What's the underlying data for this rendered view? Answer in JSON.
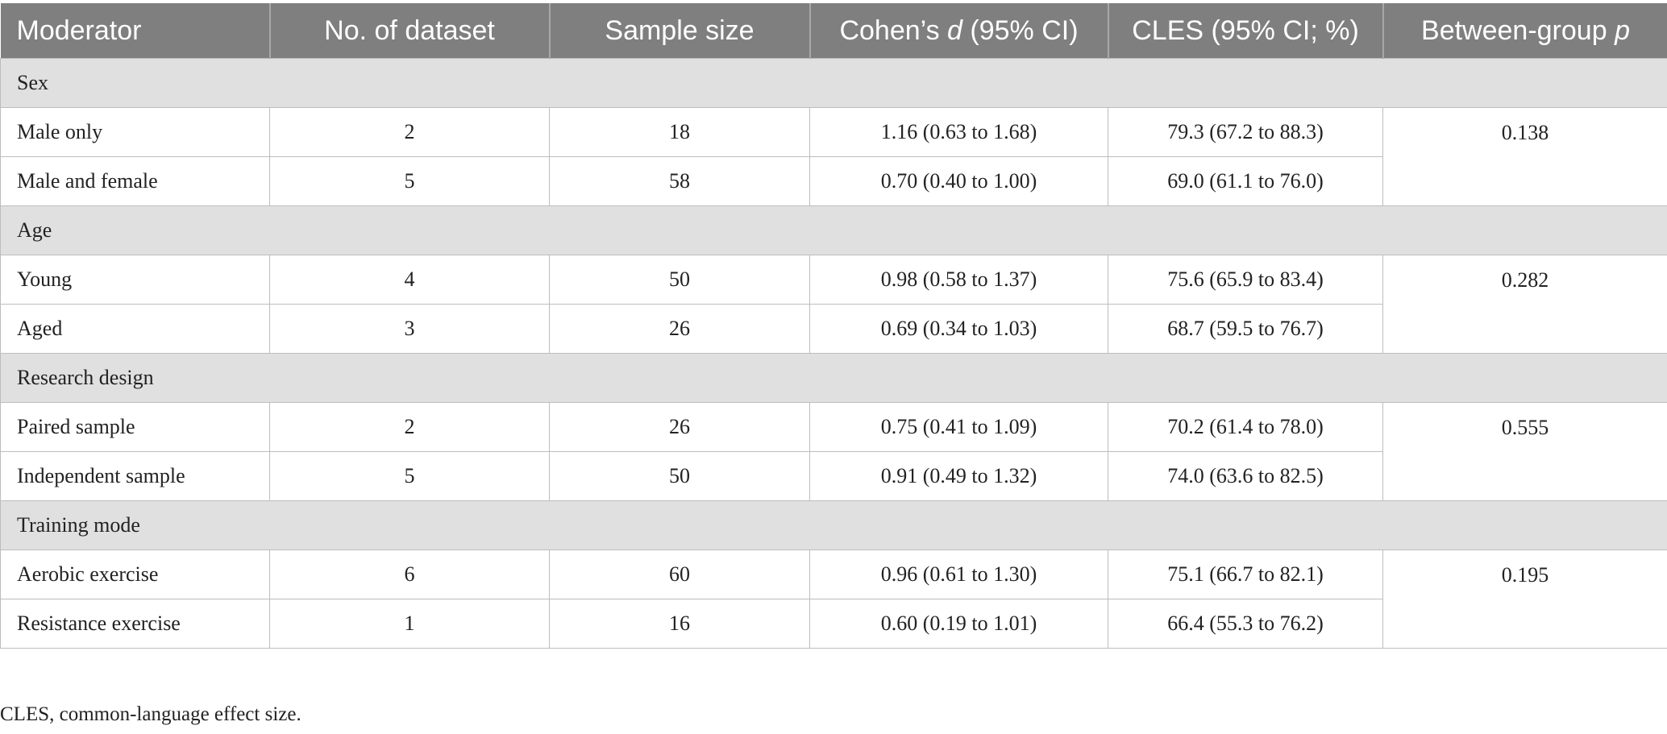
{
  "table": {
    "header": [
      [
        "Moderator"
      ],
      [
        "No. of dataset"
      ],
      [
        "Sample size"
      ],
      [
        "Cohen’s ",
        "d",
        " (95% CI)"
      ],
      [
        "CLES (95% CI; %)"
      ],
      [
        "Between-group ",
        "p"
      ]
    ],
    "groups": [
      {
        "label": "Sex",
        "p": "0.138",
        "rows": [
          [
            "Male only",
            "2",
            "18",
            "1.16 (0.63 to 1.68)",
            "79.3 (67.2 to 88.3)"
          ],
          [
            "Male and female",
            "5",
            "58",
            "0.70 (0.40 to 1.00)",
            "69.0 (61.1 to 76.0)"
          ]
        ]
      },
      {
        "label": "Age",
        "p": "0.282",
        "rows": [
          [
            "Young",
            "4",
            "50",
            "0.98 (0.58 to 1.37)",
            "75.6 (65.9 to 83.4)"
          ],
          [
            "Aged",
            "3",
            "26",
            "0.69 (0.34 to 1.03)",
            "68.7 (59.5 to 76.7)"
          ]
        ]
      },
      {
        "label": "Research design",
        "p": "0.555",
        "rows": [
          [
            "Paired sample",
            "2",
            "26",
            "0.75 (0.41 to 1.09)",
            "70.2 (61.4 to 78.0)"
          ],
          [
            "Independent sample",
            "5",
            "50",
            "0.91 (0.49 to 1.32)",
            "74.0 (63.6 to 82.5)"
          ]
        ]
      },
      {
        "label": "Training mode",
        "p": "0.195",
        "rows": [
          [
            "Aerobic exercise",
            "6",
            "60",
            "0.96 (0.61 to 1.30)",
            "75.1 (66.7 to 82.1)"
          ],
          [
            "Resistance exercise",
            "1",
            "16",
            "0.60 (0.19 to 1.01)",
            "66.4 (55.3 to 76.2)"
          ]
        ]
      }
    ]
  },
  "footnote": "CLES, common-language effect size."
}
